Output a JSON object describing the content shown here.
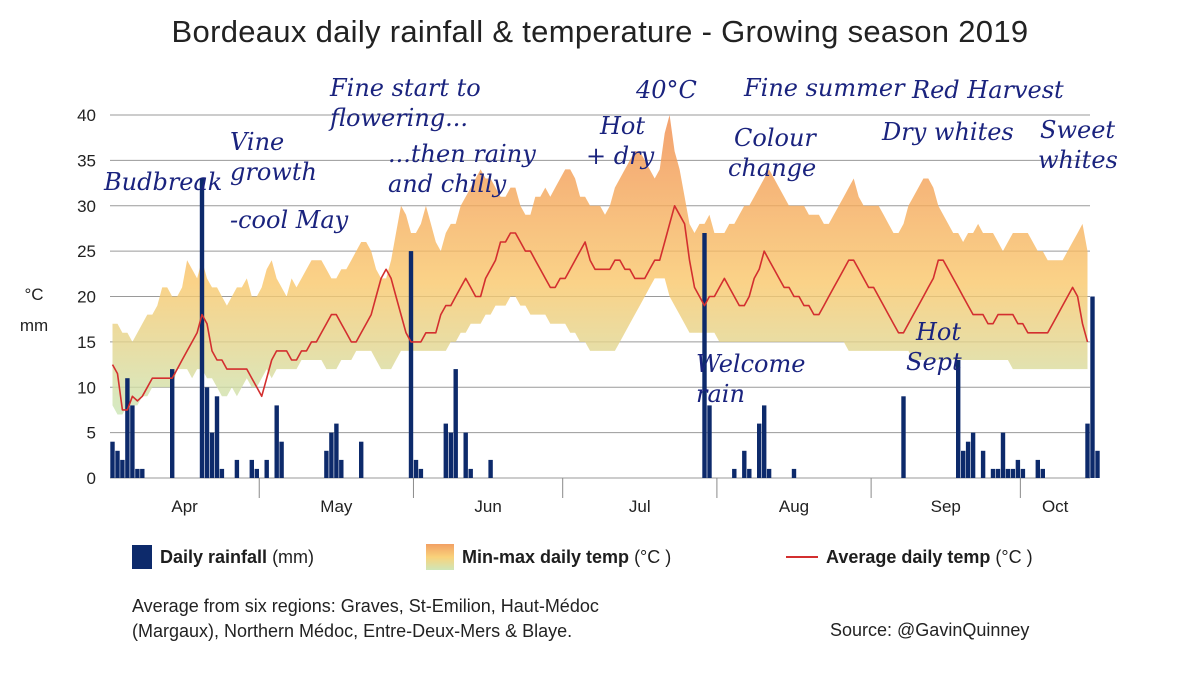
{
  "chart_data": {
    "type": "bar+area+line",
    "title": "Bordeaux daily rainfall & temperature - Growing season 2019",
    "ylabel_temp": "°C",
    "ylabel_rain": "mm",
    "ylim": [
      0,
      40
    ],
    "y_ticks": [
      "0",
      "5",
      "10",
      "15",
      "20",
      "25",
      "30",
      "35",
      "40"
    ],
    "x_start": "2019-04-01",
    "months": [
      "Apr",
      "May",
      "Jun",
      "Jul",
      "Aug",
      "Sep",
      "Oct"
    ],
    "grid": true,
    "colors": {
      "rain": "#0d2a6b",
      "avg": "#d32f2f",
      "band_hot": "#f08a4b",
      "band_mid": "#f9c76a",
      "band_cool": "#c8e6b8",
      "annotation": "#1a237e"
    },
    "rain": [
      4,
      3,
      2,
      11,
      8,
      1,
      1,
      0,
      0,
      0,
      0,
      0,
      12,
      0,
      0,
      0,
      0,
      0,
      33,
      10,
      5,
      9,
      1,
      0,
      0,
      2,
      0,
      0,
      2,
      1,
      0,
      2,
      0,
      8,
      4,
      0,
      0,
      0,
      0,
      0,
      0,
      0,
      0,
      3,
      5,
      6,
      2,
      0,
      0,
      0,
      4,
      0,
      0,
      0,
      0,
      0,
      0,
      0,
      0,
      0,
      25,
      2,
      1,
      0,
      0,
      0,
      0,
      6,
      5,
      12,
      0,
      5,
      1,
      0,
      0,
      0,
      2,
      0,
      0,
      0,
      0,
      0,
      0,
      0,
      0,
      0,
      0,
      0,
      0,
      0,
      0,
      0,
      0,
      0,
      0,
      0,
      0,
      0,
      0,
      0,
      0,
      0,
      0,
      0,
      0,
      0,
      0,
      0,
      0,
      0,
      0,
      0,
      0,
      0,
      0,
      0,
      0,
      0,
      0,
      27,
      8,
      0,
      0,
      0,
      0,
      1,
      0,
      3,
      1,
      0,
      6,
      8,
      1,
      0,
      0,
      0,
      0,
      1,
      0,
      0,
      0,
      0,
      0,
      0,
      0,
      0,
      0,
      0,
      0,
      0,
      0,
      0,
      0,
      0,
      0,
      0,
      0,
      0,
      0,
      9,
      0,
      0,
      0,
      0,
      0,
      0,
      0,
      0,
      0,
      0,
      13,
      3,
      4,
      5,
      0,
      3,
      0,
      1,
      1,
      5,
      1,
      1,
      2,
      1,
      0,
      0,
      2,
      1,
      0,
      0,
      0,
      0,
      0,
      0,
      0,
      0,
      6,
      20,
      3
    ],
    "tmin": [
      8,
      7,
      7,
      8,
      8,
      8,
      9,
      9,
      10,
      10,
      10,
      10,
      10,
      12,
      12,
      12,
      11,
      12,
      12,
      11,
      11,
      10,
      9,
      9,
      10,
      9,
      10,
      11,
      10,
      10,
      11,
      12,
      11,
      12,
      12,
      12,
      12,
      12,
      13,
      13,
      13,
      13,
      13,
      12,
      12,
      12,
      13,
      13,
      13,
      14,
      14,
      14,
      14,
      13,
      12,
      12,
      12,
      13,
      14,
      14,
      14,
      14,
      14,
      14,
      14,
      14,
      14,
      14,
      15,
      15,
      16,
      16,
      17,
      17,
      17,
      18,
      18,
      19,
      19,
      19,
      20,
      20,
      19,
      19,
      18,
      18,
      18,
      18,
      17,
      17,
      17,
      17,
      16,
      16,
      15,
      15,
      14,
      14,
      14,
      14,
      14,
      14,
      15,
      16,
      17,
      18,
      19,
      20,
      21,
      22,
      22,
      22,
      20,
      19,
      18,
      17,
      16,
      16,
      16,
      16,
      16,
      16,
      15,
      15,
      15,
      15,
      15,
      15,
      15,
      15,
      15,
      15,
      15,
      15,
      15,
      15,
      15,
      15,
      15,
      15,
      15,
      15,
      15,
      15,
      15,
      15,
      15,
      15,
      14,
      14,
      14,
      14,
      14,
      14,
      14,
      14,
      14,
      14,
      14,
      14,
      14,
      13,
      13,
      13,
      13,
      13,
      13,
      13,
      13,
      13,
      13,
      13,
      13,
      13,
      13,
      13,
      13,
      13,
      13,
      13,
      13,
      12,
      12,
      12,
      12,
      12,
      12,
      12,
      12,
      12,
      12,
      12,
      12,
      12,
      12,
      12,
      12,
      12,
      12,
      12,
      12
    ],
    "tmax": [
      17,
      17,
      16,
      16,
      15,
      16,
      17,
      18,
      18,
      19,
      21,
      21,
      20,
      20,
      21,
      24,
      23,
      22,
      24,
      22,
      21,
      21,
      20,
      19,
      20,
      21,
      21,
      22,
      20,
      20,
      21,
      23,
      24,
      22,
      21,
      20,
      22,
      21,
      22,
      23,
      24,
      24,
      24,
      23,
      22,
      22,
      23,
      23,
      24,
      25,
      26,
      26,
      25,
      23,
      22,
      22,
      24,
      27,
      30,
      29,
      27,
      27,
      28,
      30,
      28,
      26,
      25,
      27,
      28,
      28,
      30,
      31,
      32,
      33,
      34,
      33,
      33,
      32,
      31,
      31,
      32,
      32,
      30,
      29,
      29,
      31,
      31,
      32,
      31,
      32,
      33,
      34,
      34,
      33,
      31,
      31,
      30,
      30,
      30,
      29,
      30,
      32,
      33,
      34,
      35,
      36,
      36,
      35,
      34,
      33,
      34,
      38,
      40,
      36,
      34,
      31,
      28,
      27,
      28,
      28,
      29,
      27,
      27,
      27,
      28,
      28,
      29,
      30,
      30,
      31,
      32,
      33,
      34,
      33,
      32,
      31,
      30,
      30,
      30,
      30,
      29,
      29,
      29,
      28,
      28,
      29,
      30,
      31,
      32,
      33,
      31,
      30,
      30,
      30,
      30,
      29,
      28,
      27,
      27,
      28,
      30,
      31,
      32,
      33,
      33,
      32,
      30,
      29,
      28,
      27,
      27,
      26,
      27,
      27,
      28,
      27,
      27,
      27,
      26,
      25,
      26,
      27,
      27,
      27,
      27,
      26,
      25,
      25,
      24,
      24,
      24,
      24,
      25,
      26,
      27,
      28,
      25,
      22,
      22
    ],
    "tavg": [
      12.5,
      11.5,
      7.5,
      7.5,
      9,
      8.5,
      9,
      10,
      11,
      11,
      11,
      11,
      11,
      12,
      13,
      14,
      15,
      16,
      18,
      17,
      14,
      13,
      13,
      12,
      12,
      12,
      12,
      12,
      11,
      10,
      9,
      11,
      13,
      14,
      14,
      14,
      13,
      13,
      14,
      14,
      15,
      15,
      16,
      17,
      18,
      18,
      17,
      16,
      15,
      15,
      16,
      17,
      18,
      20,
      22,
      23,
      22,
      20,
      18,
      16,
      15,
      15,
      15,
      16,
      16,
      16,
      18,
      19,
      19,
      20,
      21,
      22,
      21,
      20,
      20,
      22,
      23,
      24,
      26,
      26,
      27,
      27,
      26,
      25,
      25,
      24,
      23,
      22,
      21,
      21,
      22,
      22,
      23,
      24,
      25,
      26,
      24,
      23,
      23,
      23,
      23,
      24,
      24,
      23,
      23,
      22,
      22,
      22,
      23,
      24,
      24,
      26,
      28,
      30,
      29,
      28,
      24,
      21,
      20,
      19,
      20,
      20,
      21,
      22,
      21,
      20,
      19,
      19,
      20,
      22,
      23,
      25,
      24,
      23,
      22,
      21,
      21,
      20,
      20,
      19,
      19,
      18,
      18,
      19,
      20,
      21,
      22,
      23,
      24,
      24,
      23,
      22,
      21,
      21,
      20,
      19,
      18,
      17,
      16,
      16,
      17,
      18,
      19,
      20,
      21,
      22,
      24,
      24,
      23,
      22,
      21,
      20,
      19,
      18,
      18,
      18,
      17,
      17,
      18,
      18,
      18,
      18,
      17,
      17,
      16,
      16,
      16,
      16,
      16,
      17,
      18,
      19,
      20,
      21,
      20,
      17,
      15
    ],
    "x_axis_labels": [
      "Apr",
      "May",
      "Jun",
      "Jul",
      "Aug",
      "Sep",
      "Oct"
    ]
  },
  "annotations": {
    "budbreak": "Budbreak",
    "vine_growth_1": "Vine",
    "vine_growth_2": "growth",
    "cool_may": "-cool May",
    "fine_start_1": "Fine start to",
    "fine_start_2": "flowering...",
    "rainy_1": "...then rainy",
    "rainy_2": "and chilly",
    "hot_dry_1": "Hot",
    "hot_dry_2": "+ dry",
    "forty": "40°C",
    "fine_summer": "Fine summer",
    "red_harvest": "Red Harvest",
    "colour_1": "Colour",
    "colour_2": "change",
    "dry_whites": "Dry whites",
    "sweet_1": "Sweet",
    "sweet_2": "whites",
    "welcome_1": "Welcome",
    "welcome_2": "rain",
    "hot_sept_1": "Hot",
    "hot_sept_2": "Sept"
  },
  "legend": {
    "rain_bold": "Daily rainfall",
    "rain_unit": "(mm)",
    "band_bold": "Min-max daily temp",
    "band_unit": "(°C )",
    "avg_bold": "Average daily temp",
    "avg_unit": "(°C )"
  },
  "footer": {
    "note_line1": "Average from six regions: Graves, St-Emilion, Haut-Médoc",
    "note_line2": "(Margaux), Northern Médoc, Entre-Deux-Mers & Blaye.",
    "source": "Source: @GavinQuinney"
  }
}
